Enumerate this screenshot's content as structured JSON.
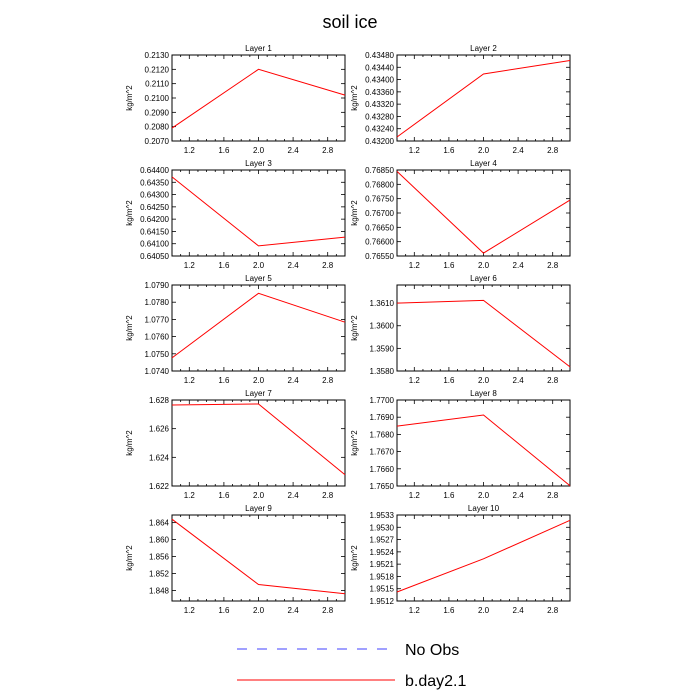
{
  "figure_title": "soil ice",
  "legend": {
    "items": [
      {
        "label": "No Obs",
        "color": "#4040ff",
        "dash": "dashed"
      },
      {
        "label": "b.day2.1",
        "color": "#ff0000",
        "dash": "solid"
      }
    ]
  },
  "chart_data": [
    {
      "type": "line",
      "title": "Layer 1",
      "ylabel": "kg/m^2",
      "xlim": [
        1,
        3
      ],
      "xticks": [
        "1.2",
        "1.6",
        "2.0",
        "2.4",
        "2.8"
      ],
      "ylim": [
        0.207,
        0.213
      ],
      "yticks": [
        "0.2070",
        "0.2080",
        "0.2090",
        "0.2100",
        "0.2110",
        "0.2120",
        "0.2130"
      ],
      "series": [
        {
          "name": "b.day2.1",
          "x": [
            1,
            2,
            3
          ],
          "values": [
            0.2079,
            0.212,
            0.2102
          ]
        }
      ]
    },
    {
      "type": "line",
      "title": "Layer 2",
      "ylabel": "kg/m^2",
      "xlim": [
        1,
        3
      ],
      "xticks": [
        "1.2",
        "1.6",
        "2.0",
        "2.4",
        "2.8"
      ],
      "ylim": [
        0.432,
        0.4348
      ],
      "yticks": [
        "0.43200",
        "0.43240",
        "0.43280",
        "0.43320",
        "0.43360",
        "0.43400",
        "0.43440",
        "0.43480"
      ],
      "series": [
        {
          "name": "b.day2.1",
          "x": [
            1,
            2,
            3
          ],
          "values": [
            0.43213,
            0.43418,
            0.43462
          ]
        }
      ]
    },
    {
      "type": "line",
      "title": "Layer 3",
      "ylabel": "kg/m^2",
      "xlim": [
        1,
        3
      ],
      "xticks": [
        "1.2",
        "1.6",
        "2.0",
        "2.4",
        "2.8"
      ],
      "ylim": [
        0.6405,
        0.644
      ],
      "yticks": [
        "0.64050",
        "0.64100",
        "0.64150",
        "0.64200",
        "0.64250",
        "0.64300",
        "0.64350",
        "0.64400"
      ],
      "series": [
        {
          "name": "b.day2.1",
          "x": [
            1,
            2,
            3
          ],
          "values": [
            0.64372,
            0.64091,
            0.64127
          ]
        }
      ]
    },
    {
      "type": "line",
      "title": "Layer 4",
      "ylabel": "kg/m^2",
      "xlim": [
        1,
        3
      ],
      "xticks": [
        "1.2",
        "1.6",
        "2.0",
        "2.4",
        "2.8"
      ],
      "ylim": [
        0.7655,
        0.7685
      ],
      "yticks": [
        "0.76550",
        "0.76600",
        "0.76650",
        "0.76700",
        "0.76750",
        "0.76800",
        "0.76850"
      ],
      "series": [
        {
          "name": "b.day2.1",
          "x": [
            1,
            2,
            3
          ],
          "values": [
            0.76845,
            0.7656,
            0.76745
          ]
        }
      ]
    },
    {
      "type": "line",
      "title": "Layer 5",
      "ylabel": "kg/m^2",
      "xlim": [
        1,
        3
      ],
      "xticks": [
        "1.2",
        "1.6",
        "2.0",
        "2.4",
        "2.8"
      ],
      "ylim": [
        1.074,
        1.079
      ],
      "yticks": [
        "1.0740",
        "1.0750",
        "1.0760",
        "1.0770",
        "1.0780",
        "1.0790"
      ],
      "series": [
        {
          "name": "b.day2.1",
          "x": [
            1,
            2,
            3
          ],
          "values": [
            1.07476,
            1.07852,
            1.07684
          ]
        }
      ]
    },
    {
      "type": "line",
      "title": "Layer 6",
      "ylabel": "kg/m^2",
      "xlim": [
        1,
        3
      ],
      "xticks": [
        "1.2",
        "1.6",
        "2.0",
        "2.4",
        "2.8"
      ],
      "ylim": [
        1.358,
        1.3618
      ],
      "yticks": [
        "1.3580",
        "1.3590",
        "1.3600",
        "1.3610"
      ],
      "series": [
        {
          "name": "b.day2.1",
          "x": [
            1,
            2,
            3
          ],
          "values": [
            1.361,
            1.36112,
            1.35818
          ]
        }
      ]
    },
    {
      "type": "line",
      "title": "Layer 7",
      "ylabel": "kg/m^2",
      "xlim": [
        1,
        3
      ],
      "xticks": [
        "1.2",
        "1.6",
        "2.0",
        "2.4",
        "2.8"
      ],
      "ylim": [
        1.622,
        1.628
      ],
      "yticks": [
        "1.622",
        "1.624",
        "1.626",
        "1.628"
      ],
      "series": [
        {
          "name": "b.day2.1",
          "x": [
            1,
            2,
            3
          ],
          "values": [
            1.62765,
            1.62772,
            1.62278
          ]
        }
      ]
    },
    {
      "type": "line",
      "title": "Layer 8",
      "ylabel": "kg/m^2",
      "xlim": [
        1,
        3
      ],
      "xticks": [
        "1.2",
        "1.6",
        "2.0",
        "2.4",
        "2.8"
      ],
      "ylim": [
        1.765,
        1.77
      ],
      "yticks": [
        "1.7650",
        "1.7660",
        "1.7670",
        "1.7680",
        "1.7690",
        "1.7700"
      ],
      "series": [
        {
          "name": "b.day2.1",
          "x": [
            1,
            2,
            3
          ],
          "values": [
            1.76848,
            1.76913,
            1.76502
          ]
        }
      ]
    },
    {
      "type": "line",
      "title": "Layer 9",
      "ylabel": "kg/m^2",
      "xlim": [
        1,
        3
      ],
      "xticks": [
        "1.2",
        "1.6",
        "2.0",
        "2.4",
        "2.8"
      ],
      "ylim": [
        1.8455,
        1.8658
      ],
      "yticks": [
        "1.848",
        "1.852",
        "1.856",
        "1.860",
        "1.864"
      ],
      "series": [
        {
          "name": "b.day2.1",
          "x": [
            1,
            2,
            3
          ],
          "values": [
            1.8648,
            1.8494,
            1.8472
          ]
        }
      ]
    },
    {
      "type": "line",
      "title": "Layer 10",
      "ylabel": "kg/m^2",
      "xlim": [
        1,
        3
      ],
      "xticks": [
        "1.2",
        "1.6",
        "2.0",
        "2.4",
        "2.8"
      ],
      "ylim": [
        1.9512,
        1.9533
      ],
      "yticks": [
        "1.9512",
        "1.9515",
        "1.9518",
        "1.9521",
        "1.9524",
        "1.9527",
        "1.9530",
        "1.9533"
      ],
      "series": [
        {
          "name": "b.day2.1",
          "x": [
            1,
            2,
            3
          ],
          "values": [
            1.95142,
            1.95223,
            1.95317
          ]
        }
      ]
    }
  ]
}
